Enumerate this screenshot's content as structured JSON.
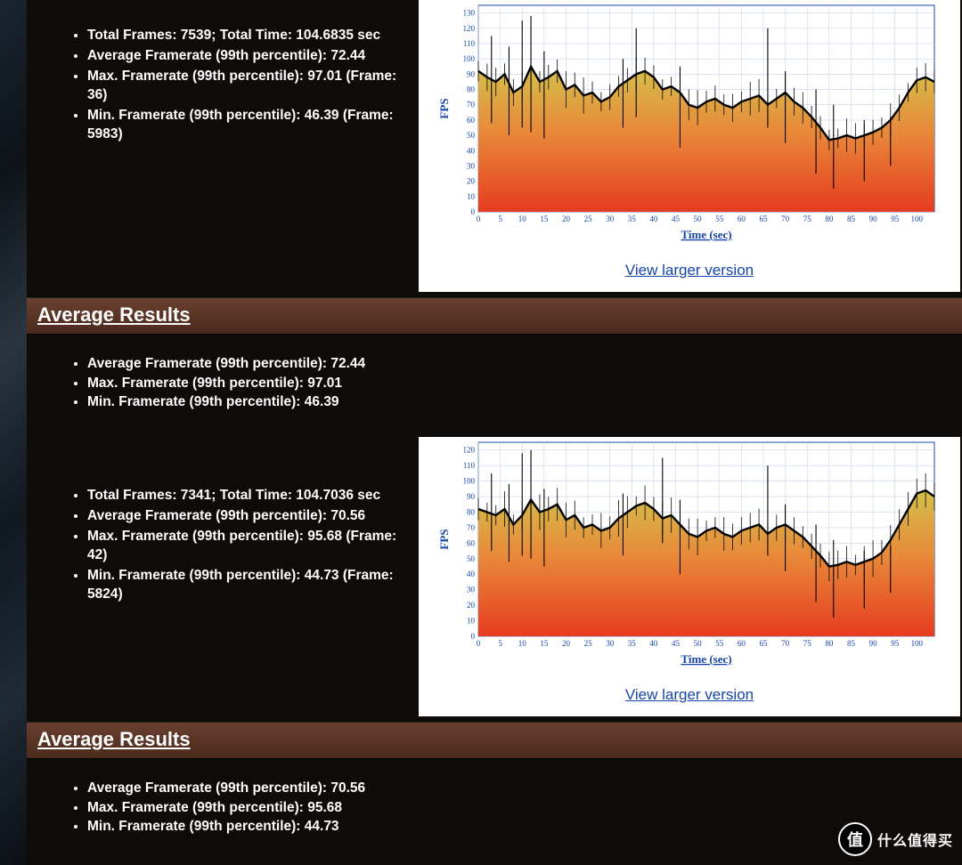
{
  "panels": [
    {
      "stats": {
        "totalFrames": "7539",
        "totalTime": "104.6835",
        "avgFramerate": "72.44",
        "maxFramerate": "97.01",
        "maxFrame": "36",
        "minFramerate": "46.39",
        "minFrame": "5983"
      },
      "avg": {
        "heading": "Average Results",
        "avg": "72.44",
        "max": "97.01",
        "min": "46.39"
      },
      "chart": {
        "link": "View larger version",
        "ylabel": "FPS",
        "xlabel": "Time (sec)",
        "xmin": 0,
        "xmax": 104,
        "xtick_step": 5,
        "ymin": 0,
        "ymax": 135,
        "ytick_step": 10,
        "bg": "#ffffff",
        "grid_major": "#c9d4ee",
        "grid_minor": "#e8edf8",
        "axis_color": "#1646a8",
        "label_color": "#1646a8",
        "tick_font": 9,
        "label_font": 13,
        "line_color": "#000000",
        "fill_top": "#d4c04a",
        "fill_mid": "#e8893a",
        "fill_bot": "#e63c1f",
        "x": [
          0,
          2,
          4,
          6,
          8,
          10,
          12,
          14,
          16,
          18,
          20,
          22,
          24,
          26,
          28,
          30,
          32,
          34,
          36,
          38,
          40,
          42,
          44,
          46,
          48,
          50,
          52,
          54,
          56,
          58,
          60,
          62,
          64,
          66,
          68,
          70,
          72,
          74,
          76,
          78,
          80,
          82,
          84,
          86,
          88,
          90,
          92,
          94,
          96,
          98,
          100,
          102,
          104
        ],
        "y": [
          92,
          88,
          85,
          90,
          78,
          82,
          95,
          85,
          88,
          92,
          80,
          83,
          76,
          78,
          72,
          75,
          82,
          86,
          90,
          92,
          88,
          80,
          82,
          78,
          70,
          68,
          72,
          74,
          70,
          68,
          72,
          74,
          76,
          70,
          74,
          78,
          72,
          68,
          62,
          55,
          47,
          48,
          50,
          48,
          50,
          52,
          55,
          60,
          68,
          78,
          86,
          88,
          85
        ],
        "spikes_x": [
          3,
          7,
          10,
          12,
          15,
          33,
          36,
          46,
          66,
          70,
          77,
          81,
          88,
          94
        ],
        "spikes_hi": [
          115,
          108,
          125,
          128,
          105,
          100,
          120,
          95,
          120,
          92,
          80,
          70,
          60,
          62
        ],
        "spikes_lo": [
          58,
          50,
          55,
          52,
          48,
          55,
          62,
          42,
          55,
          45,
          25,
          15,
          20,
          30
        ]
      }
    },
    {
      "stats": {
        "totalFrames": "7341",
        "totalTime": "104.7036",
        "avgFramerate": "70.56",
        "maxFramerate": "95.68",
        "maxFrame": "42",
        "minFramerate": "44.73",
        "minFrame": "5824"
      },
      "avg": {
        "heading": "Average Results",
        "avg": "70.56",
        "max": "95.68",
        "min": "44.73"
      },
      "chart": {
        "link": "View larger version",
        "ylabel": "FPS",
        "xlabel": "Time (sec)",
        "xmin": 0,
        "xmax": 104,
        "xtick_step": 5,
        "ymin": 0,
        "ymax": 125,
        "ytick_step": 10,
        "bg": "#ffffff",
        "grid_major": "#c9d4ee",
        "grid_minor": "#e8edf8",
        "axis_color": "#1646a8",
        "label_color": "#1646a8",
        "tick_font": 9,
        "label_font": 13,
        "line_color": "#000000",
        "fill_top": "#d4c04a",
        "fill_mid": "#e8893a",
        "fill_bot": "#e63c1f",
        "x": [
          0,
          2,
          4,
          6,
          8,
          10,
          12,
          14,
          16,
          18,
          20,
          22,
          24,
          26,
          28,
          30,
          32,
          34,
          36,
          38,
          40,
          42,
          44,
          46,
          48,
          50,
          52,
          54,
          56,
          58,
          60,
          62,
          64,
          66,
          68,
          70,
          72,
          74,
          76,
          78,
          80,
          82,
          84,
          86,
          88,
          90,
          92,
          94,
          96,
          98,
          100,
          102,
          104
        ],
        "y": [
          82,
          80,
          78,
          82,
          72,
          78,
          88,
          80,
          82,
          85,
          75,
          78,
          70,
          72,
          68,
          70,
          76,
          80,
          84,
          86,
          82,
          76,
          78,
          72,
          66,
          64,
          68,
          70,
          66,
          64,
          68,
          70,
          72,
          66,
          70,
          72,
          68,
          64,
          58,
          52,
          45,
          46,
          48,
          46,
          48,
          50,
          54,
          62,
          72,
          82,
          92,
          94,
          90
        ],
        "spikes_x": [
          3,
          7,
          10,
          12,
          15,
          33,
          42,
          46,
          66,
          70,
          77,
          81,
          88,
          94
        ],
        "spikes_hi": [
          105,
          98,
          118,
          120,
          95,
          92,
          115,
          88,
          110,
          85,
          72,
          62,
          55,
          58
        ],
        "spikes_lo": [
          55,
          48,
          52,
          50,
          45,
          52,
          60,
          40,
          52,
          42,
          22,
          12,
          18,
          28
        ]
      }
    }
  ],
  "labels": {
    "totalFramesPrefix": "Total Frames: ",
    "totalTimeJoin": "; Total Time: ",
    "secSuffix": " sec",
    "avgPrefix": "Average Framerate (99th percentile): ",
    "maxPrefix": "Max. Framerate (99th percentile): ",
    "minPrefix": "Min. Framerate (99th percentile): ",
    "frameOpen": " (Frame: ",
    "frameClose": ")"
  },
  "watermark": {
    "badge": "值",
    "text": "什么值得买"
  }
}
